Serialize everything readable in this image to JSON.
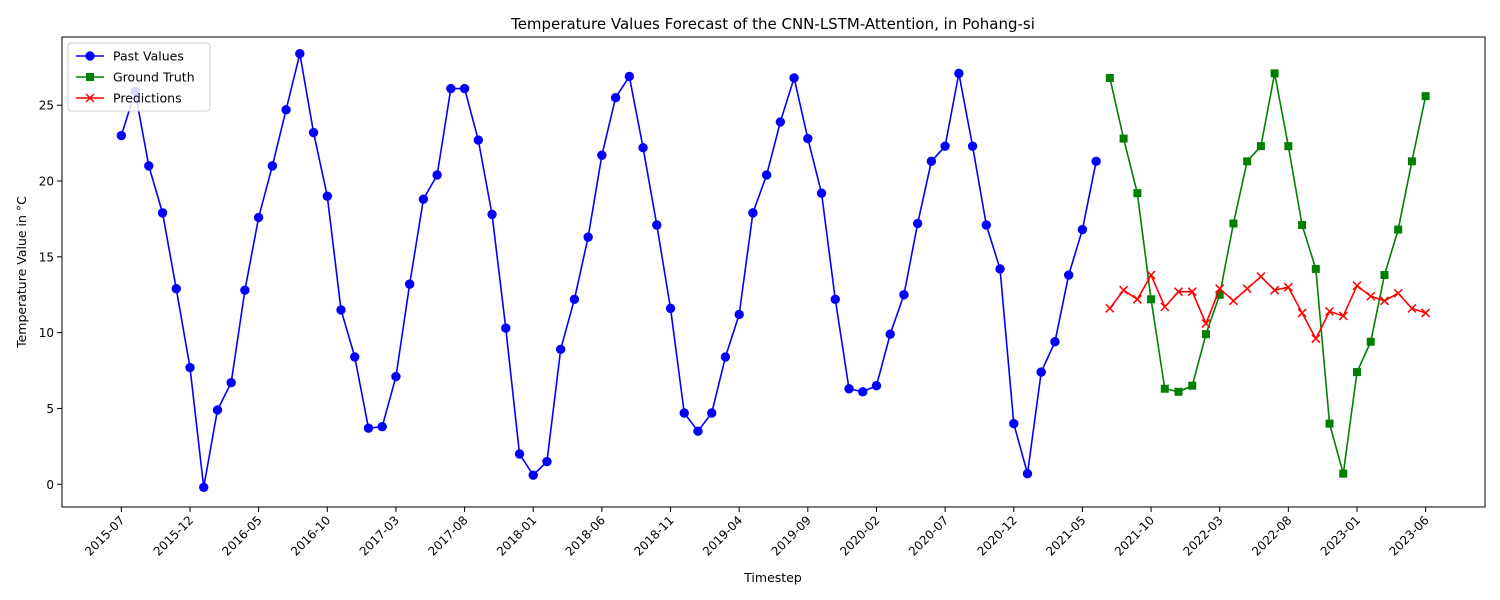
{
  "chart_data": {
    "type": "line",
    "title": "Temperature Values Forecast of the CNN-LSTM-Attention, in Pohang-si",
    "xlabel": "Timestep",
    "ylabel": "Temperature Value in °C",
    "ylim": [
      -1.5,
      29.5
    ],
    "yticks": [
      0,
      5,
      10,
      15,
      20,
      25
    ],
    "xticks": [
      "2015-07",
      "2015-12",
      "2016-05",
      "2016-10",
      "2017-03",
      "2017-08",
      "2018-01",
      "2018-06",
      "2018-11",
      "2019-04",
      "2019-09",
      "2020-02",
      "2020-07",
      "2020-12",
      "2021-05",
      "2021-10",
      "2022-03",
      "2022-08",
      "2023-01",
      "2023-06"
    ],
    "grid": false,
    "legend_position": "top-left",
    "colors": {
      "past": "#0000ff",
      "truth": "#008000",
      "pred": "#ff0000"
    },
    "series": [
      {
        "name": "Past Values",
        "marker": "circle",
        "color": "#0000ff",
        "x": [
          "2015-07",
          "2015-08",
          "2015-09",
          "2015-10",
          "2015-11",
          "2015-12",
          "2016-01",
          "2016-02",
          "2016-03",
          "2016-04",
          "2016-05",
          "2016-06",
          "2016-07",
          "2016-08",
          "2016-09",
          "2016-10",
          "2016-11",
          "2016-12",
          "2017-01",
          "2017-02",
          "2017-03",
          "2017-04",
          "2017-05",
          "2017-06",
          "2017-07",
          "2017-08",
          "2017-09",
          "2017-10",
          "2017-11",
          "2017-12",
          "2018-01",
          "2018-02",
          "2018-03",
          "2018-04",
          "2018-05",
          "2018-06",
          "2018-07",
          "2018-08",
          "2018-09",
          "2018-10",
          "2018-11",
          "2018-12",
          "2019-01",
          "2019-02",
          "2019-03",
          "2019-04",
          "2019-05",
          "2019-06",
          "2019-07",
          "2019-08",
          "2019-09",
          "2019-10",
          "2019-11",
          "2019-12",
          "2020-01",
          "2020-02",
          "2020-03",
          "2020-04",
          "2020-05",
          "2020-06",
          "2020-07",
          "2020-08",
          "2020-09",
          "2020-10",
          "2020-11",
          "2020-12",
          "2021-01",
          "2021-02",
          "2021-03",
          "2021-04",
          "2021-05",
          "2021-06"
        ],
        "values": [
          23.0,
          25.9,
          21.0,
          17.9,
          12.9,
          7.7,
          -0.2,
          4.9,
          6.7,
          12.8,
          17.6,
          21.0,
          24.7,
          28.4,
          23.2,
          19.0,
          11.5,
          8.4,
          3.7,
          3.8,
          7.1,
          13.2,
          18.8,
          20.4,
          26.1,
          26.1,
          22.7,
          17.8,
          10.3,
          2.0,
          0.6,
          1.5,
          8.9,
          12.2,
          16.3,
          21.7,
          25.5,
          26.9,
          22.2,
          17.1,
          11.6,
          4.7,
          3.5,
          4.7,
          8.4,
          11.2,
          17.9,
          20.4,
          23.9,
          26.8,
          22.8,
          19.2,
          12.2,
          6.3,
          6.1,
          6.5,
          9.9,
          12.5,
          17.2,
          21.3,
          22.3,
          27.1,
          22.3,
          17.1,
          14.2,
          4.0,
          0.7,
          7.4,
          9.4,
          13.8,
          16.8,
          21.3
        ]
      },
      {
        "name": "Ground Truth",
        "marker": "square",
        "color": "#008000",
        "x": [
          "2021-07",
          "2021-08",
          "2021-09",
          "2021-10",
          "2021-11",
          "2021-12",
          "2022-01",
          "2022-02",
          "2022-03",
          "2022-04",
          "2022-05",
          "2022-06",
          "2022-07",
          "2022-08",
          "2022-09",
          "2022-10",
          "2022-11",
          "2022-12",
          "2023-01",
          "2023-02",
          "2023-03",
          "2023-04",
          "2023-05",
          "2023-06"
        ],
        "values": [
          26.8,
          22.8,
          19.2,
          12.2,
          6.3,
          6.1,
          6.5,
          9.9,
          12.5,
          17.2,
          21.3,
          22.3,
          27.1,
          22.3,
          17.1,
          14.2,
          4.0,
          0.7,
          7.4,
          9.4,
          13.8,
          16.8,
          21.3,
          25.6
        ]
      },
      {
        "name": "Predictions",
        "marker": "x",
        "color": "#ff0000",
        "x": [
          "2021-07",
          "2021-08",
          "2021-09",
          "2021-10",
          "2021-11",
          "2021-12",
          "2022-01",
          "2022-02",
          "2022-03",
          "2022-04",
          "2022-05",
          "2022-06",
          "2022-07",
          "2022-08",
          "2022-09",
          "2022-10",
          "2022-11",
          "2022-12",
          "2023-01",
          "2023-02",
          "2023-03",
          "2023-04",
          "2023-05",
          "2023-06"
        ],
        "values": [
          11.6,
          12.8,
          12.2,
          13.8,
          11.7,
          12.7,
          12.7,
          10.6,
          12.9,
          12.1,
          12.9,
          13.7,
          12.8,
          13.0,
          11.3,
          9.6,
          11.4,
          11.1,
          13.1,
          12.4,
          12.1,
          12.6,
          11.6,
          11.3
        ]
      }
    ]
  }
}
